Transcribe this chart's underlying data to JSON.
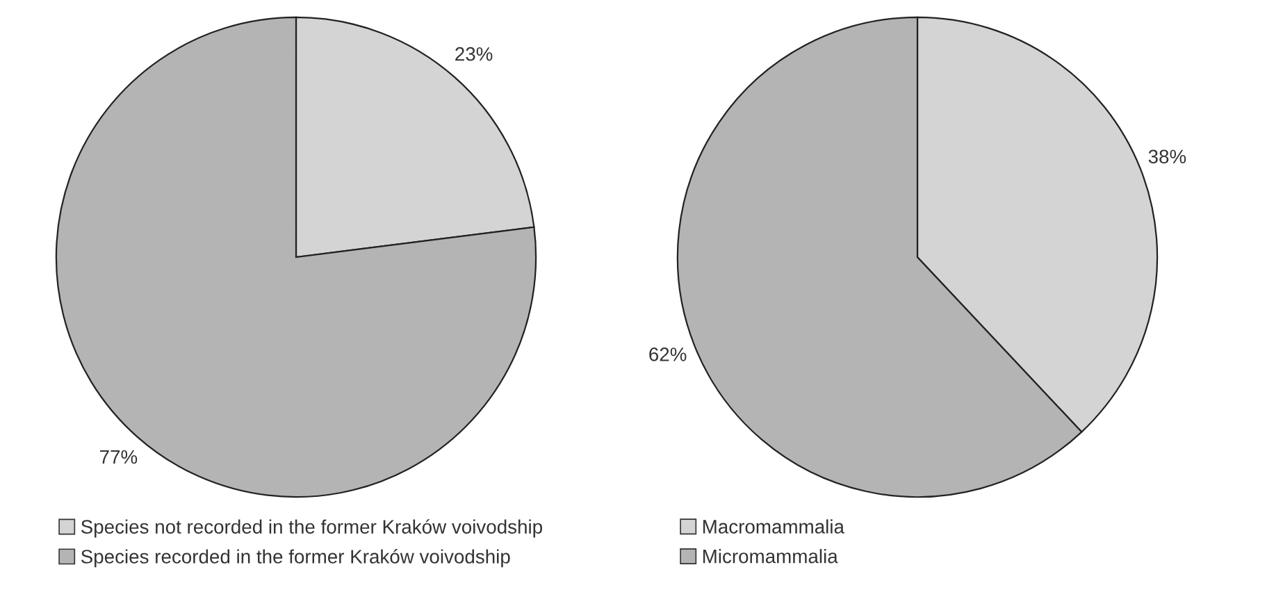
{
  "chart_data": [
    {
      "type": "pie",
      "categories": [
        "Species not recorded in the former Kraków voivodship",
        "Species recorded in the former Kraków voivodship"
      ],
      "values": [
        23,
        77
      ],
      "colors": [
        "#d4d4d4",
        "#b4b4b4"
      ],
      "value_labels": [
        "23%",
        "77%"
      ],
      "legend": "bottom"
    },
    {
      "type": "pie",
      "categories": [
        "Macromammalia",
        "Micromammalia"
      ],
      "values": [
        38,
        62
      ],
      "colors": [
        "#d4d4d4",
        "#b4b4b4"
      ],
      "value_labels": [
        "38%",
        "62%"
      ],
      "legend": "bottom"
    }
  ]
}
